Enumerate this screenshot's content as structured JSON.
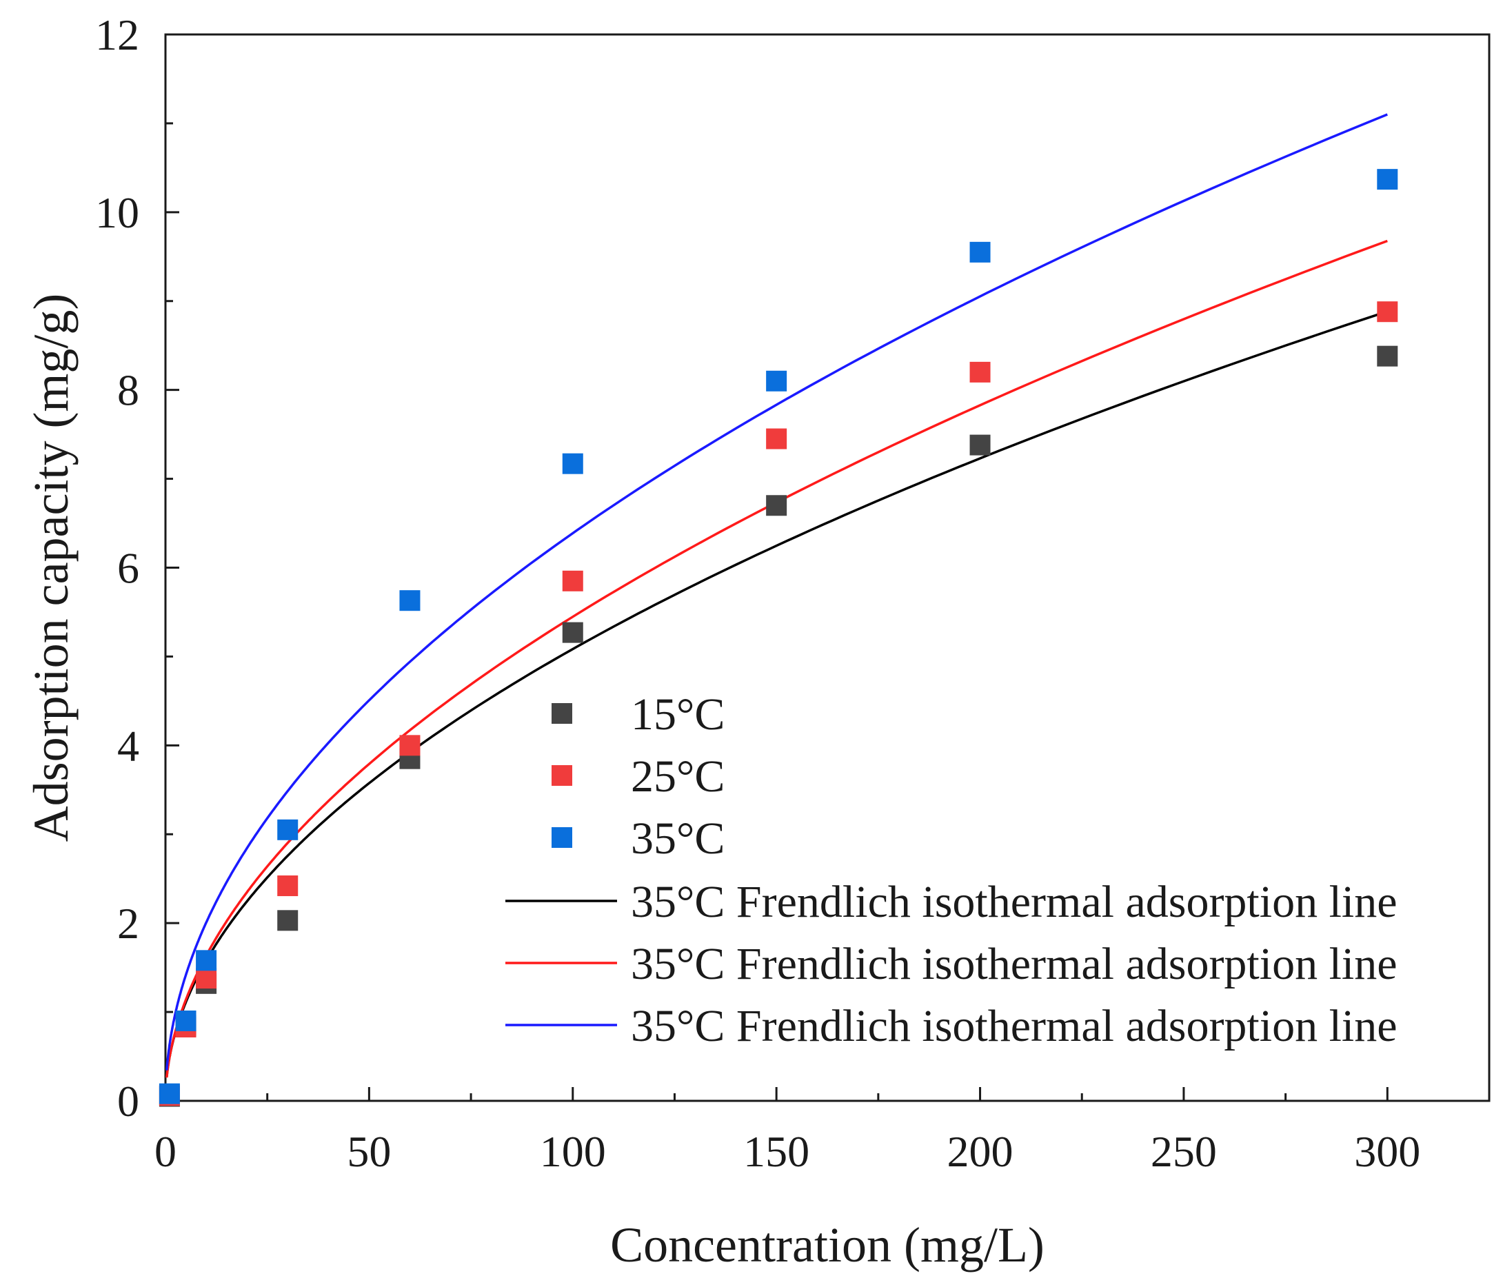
{
  "chart_data": {
    "type": "scatter",
    "xlabel": "Concentration (mg/L)",
    "ylabel": "Adsorption capacity (mg/g)",
    "xlim": [
      0,
      325
    ],
    "ylim": [
      0,
      12
    ],
    "x_ticks": [
      0,
      50,
      100,
      150,
      200,
      250,
      300
    ],
    "y_ticks": [
      0,
      2,
      4,
      6,
      8,
      10,
      12
    ],
    "grid": false,
    "legend_position": "center-right",
    "series": [
      {
        "name": "15°C",
        "kind": "scatter",
        "color": "#444444",
        "points": [
          [
            1,
            0.05
          ],
          [
            5,
            0.85
          ],
          [
            10,
            1.32
          ],
          [
            30,
            2.03
          ],
          [
            60,
            3.85
          ],
          [
            100,
            5.27
          ],
          [
            150,
            6.7
          ],
          [
            200,
            7.38
          ],
          [
            300,
            8.38
          ]
        ]
      },
      {
        "name": "25°C",
        "kind": "scatter",
        "color": "#f03c3c",
        "points": [
          [
            1,
            0.06
          ],
          [
            5,
            0.83
          ],
          [
            10,
            1.38
          ],
          [
            30,
            2.42
          ],
          [
            60,
            4.0
          ],
          [
            100,
            5.85
          ],
          [
            150,
            7.45
          ],
          [
            200,
            8.2
          ],
          [
            300,
            8.88
          ]
        ]
      },
      {
        "name": "35°C",
        "kind": "scatter",
        "color": "#0a6fdc",
        "points": [
          [
            1,
            0.08
          ],
          [
            5,
            0.9
          ],
          [
            10,
            1.58
          ],
          [
            30,
            3.05
          ],
          [
            60,
            5.63
          ],
          [
            100,
            7.17
          ],
          [
            150,
            8.1
          ],
          [
            200,
            9.55
          ],
          [
            300,
            10.37
          ]
        ]
      },
      {
        "name": "35°C Frendlich isothermal adsorption line",
        "kind": "line",
        "color": "#000000",
        "model": "freundlich",
        "K": 0.49,
        "n_inv": 0.508,
        "x_range": [
          0.3,
          300
        ]
      },
      {
        "name": "35°C Frendlich isothermal adsorption line",
        "kind": "line",
        "color": "#ff1a1a",
        "model": "freundlich",
        "K": 0.49,
        "n_inv": 0.523,
        "x_range": [
          0.3,
          300
        ]
      },
      {
        "name": "35°C Frendlich isothermal adsorption line",
        "kind": "line",
        "color": "#1a1aff",
        "model": "freundlich",
        "K": 0.63,
        "n_inv": 0.503,
        "x_range": [
          0.3,
          300
        ]
      }
    ]
  }
}
